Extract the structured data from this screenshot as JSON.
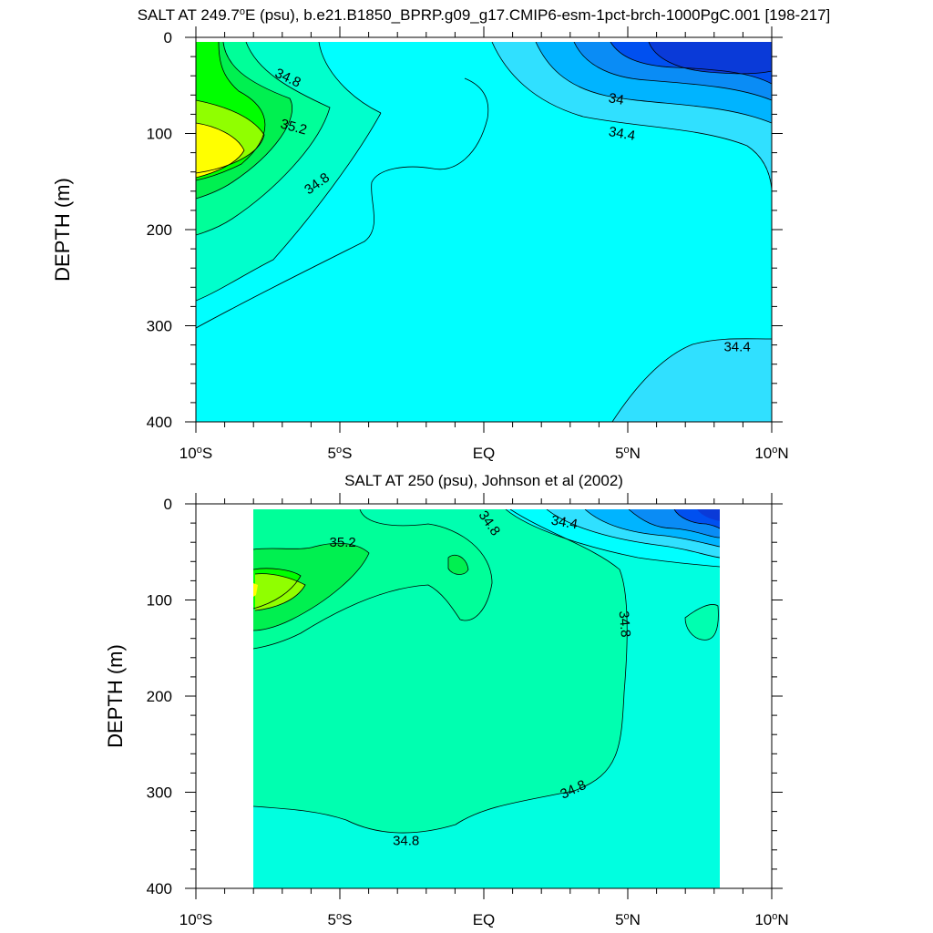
{
  "chart_data": [
    {
      "type": "contour",
      "title": "SALT AT 249.7°E (psu), b.e21.B1850_BPRP.g09_g17.CMIP6-esm-1pct-brch-1000PgC.001 [198-217]",
      "title_parts": {
        "pre": "SALT AT 249.7",
        "sup": "o",
        "post": "E (psu), b.e21.B1850_BPRP.g09_g17.CMIP6-esm-1pct-brch-1000PgC.001 [198-217]"
      },
      "ylabel": "DEPTH (m)",
      "xlim": [
        -10,
        10
      ],
      "ylim": [
        0,
        400
      ],
      "y_reversed": true,
      "xticks": [
        {
          "v": -10,
          "pre": "10",
          "sup": "o",
          "post": "S"
        },
        {
          "v": -5,
          "pre": "5",
          "sup": "o",
          "post": "S"
        },
        {
          "v": 0,
          "pre": "EQ",
          "sup": "",
          "post": ""
        },
        {
          "v": 5,
          "pre": "5",
          "sup": "o",
          "post": "N"
        },
        {
          "v": 10,
          "pre": "10",
          "sup": "o",
          "post": "N"
        }
      ],
      "yticks": [
        "0",
        "100",
        "200",
        "300",
        "400"
      ],
      "levels": [
        33.2,
        33.4,
        33.6,
        33.8,
        34.0,
        34.2,
        34.4,
        34.6,
        34.8,
        35.0,
        35.2,
        35.4,
        35.6
      ],
      "fill_colors": {
        "33.6": "#0a3ad8",
        "33.8": "#0050f0",
        "34.0": "#0a8cf5",
        "34.2": "#00b4ff",
        "34.4": "#30e0ff",
        "34.6": "#00ffff",
        "34.8": "#00ffcc",
        "35.0": "#00ff99",
        "35.2": "#00f050",
        "35.4": "#00ff00",
        "35.6": "#90ff00",
        "35.8": "#ffff00"
      },
      "contour_labels": [
        {
          "text": "34.8",
          "x": -6.8,
          "y": 42,
          "angle": 25
        },
        {
          "text": "35.2",
          "x": -6.6,
          "y": 93,
          "angle": 15
        },
        {
          "text": "34.8",
          "x": -5.8,
          "y": 152,
          "angle": -35
        },
        {
          "text": "34",
          "x": 4.6,
          "y": 64,
          "angle": 10
        },
        {
          "text": "34.4",
          "x": 4.8,
          "y": 100,
          "angle": 10
        },
        {
          "text": "34.4",
          "x": 8.8,
          "y": 322,
          "angle": 0
        }
      ]
    },
    {
      "type": "contour",
      "title": "SALT AT 250 (psu), Johnson et al (2002)",
      "ylabel": "DEPTH (m)",
      "xlim": [
        -10,
        10
      ],
      "ylim": [
        0,
        400
      ],
      "y_reversed": true,
      "data_xrange": [
        -8,
        8.2
      ],
      "xticks": [
        {
          "v": -10,
          "pre": "10",
          "sup": "o",
          "post": "S"
        },
        {
          "v": -5,
          "pre": "5",
          "sup": "o",
          "post": "S"
        },
        {
          "v": 0,
          "pre": "EQ",
          "sup": "",
          "post": ""
        },
        {
          "v": 5,
          "pre": "5",
          "sup": "o",
          "post": "N"
        },
        {
          "v": 10,
          "pre": "10",
          "sup": "o",
          "post": "N"
        }
      ],
      "yticks": [
        "0",
        "100",
        "200",
        "300",
        "400"
      ],
      "contour_labels": [
        {
          "text": "35.2",
          "x": -4.9,
          "y": 40,
          "angle": 0
        },
        {
          "text": "34.8",
          "x": 0.2,
          "y": 20,
          "angle": 55
        },
        {
          "text": "34.4",
          "x": 2.8,
          "y": 19,
          "angle": 10
        },
        {
          "text": "34.8",
          "x": 4.9,
          "y": 125,
          "angle": 85
        },
        {
          "text": "34.8",
          "x": 3.1,
          "y": 297,
          "angle": -25
        },
        {
          "text": "34.8",
          "x": -2.7,
          "y": 350,
          "angle": 0
        }
      ]
    }
  ]
}
